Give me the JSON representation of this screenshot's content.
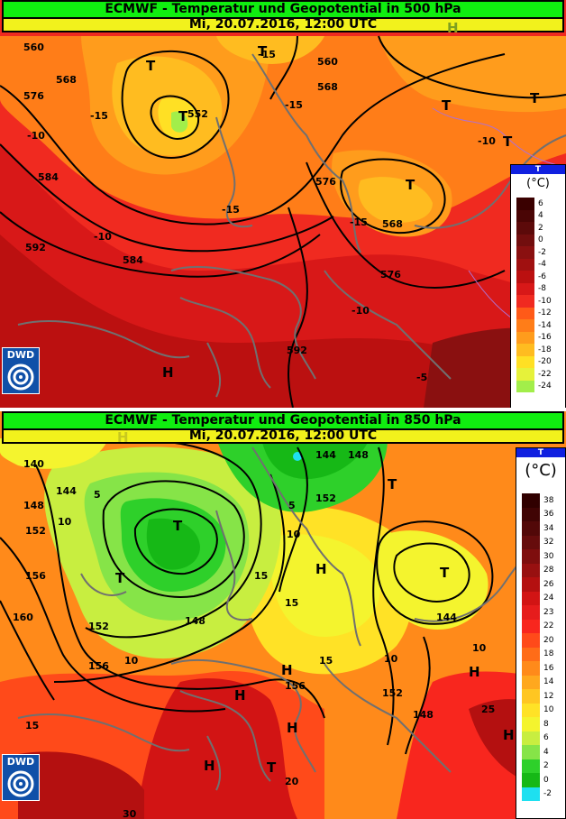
{
  "top": {
    "title": "ECMWF - Temperatur und Geopotential in 500 hPa",
    "datetime": "Mi, 20.07.2016, 12:00 UTC",
    "legend": {
      "header": "T",
      "unit": "(°C)",
      "levels": [
        {
          "label": "6",
          "color": "#3a0000"
        },
        {
          "label": "4",
          "color": "#4a0505"
        },
        {
          "label": "2",
          "color": "#5c0a0a"
        },
        {
          "label": "0",
          "color": "#720e0e"
        },
        {
          "label": "-2",
          "color": "#8a1010"
        },
        {
          "label": "-4",
          "color": "#a01010"
        },
        {
          "label": "-6",
          "color": "#bb1010"
        },
        {
          "label": "-8",
          "color": "#d81818"
        },
        {
          "label": "-10",
          "color": "#f02a20"
        },
        {
          "label": "-12",
          "color": "#ff5a18"
        },
        {
          "label": "-14",
          "color": "#ff7d18"
        },
        {
          "label": "-16",
          "color": "#ff9c1c"
        },
        {
          "label": "-18",
          "color": "#ffbc20"
        },
        {
          "label": "-20",
          "color": "#ffe024"
        },
        {
          "label": "-22",
          "color": "#e6f23a"
        },
        {
          "label": "-24",
          "color": "#a2ee4a"
        }
      ]
    },
    "contour_labels": [
      "560",
      "568",
      "576",
      "584",
      "592",
      "552",
      "560",
      "568",
      "576",
      "584",
      "568",
      "576",
      "592"
    ],
    "temp_labels": [
      "-15",
      "-15",
      "-10",
      "-10",
      "-15",
      "-15",
      "-10",
      "-10",
      "-5",
      "-15"
    ],
    "systems": [
      "T",
      "T",
      "T",
      "T",
      "T",
      "T",
      "T",
      "H",
      "H"
    ],
    "logo": "DWD"
  },
  "bottom": {
    "title": "ECMWF - Temperatur und Geopotential in 850 hPa",
    "datetime": "Mi, 20.07.2016, 12:00 UTC",
    "legend": {
      "header": "T",
      "unit": "(°C)",
      "levels": [
        {
          "label": "38",
          "color": "#300000"
        },
        {
          "label": "36",
          "color": "#400404"
        },
        {
          "label": "34",
          "color": "#520808"
        },
        {
          "label": "32",
          "color": "#660c0c"
        },
        {
          "label": "30",
          "color": "#7e0e0e"
        },
        {
          "label": "28",
          "color": "#981010"
        },
        {
          "label": "26",
          "color": "#b41010"
        },
        {
          "label": "24",
          "color": "#d21414"
        },
        {
          "label": "23",
          "color": "#e61c1c"
        },
        {
          "label": "22",
          "color": "#f8261e"
        },
        {
          "label": "20",
          "color": "#ff4a1a"
        },
        {
          "label": "18",
          "color": "#ff6c18"
        },
        {
          "label": "16",
          "color": "#ff8a1a"
        },
        {
          "label": "14",
          "color": "#ffa81e"
        },
        {
          "label": "12",
          "color": "#ffc622"
        },
        {
          "label": "10",
          "color": "#ffe226"
        },
        {
          "label": "8",
          "color": "#f4f42e"
        },
        {
          "label": "6",
          "color": "#c8ee40"
        },
        {
          "label": "4",
          "color": "#86e448"
        },
        {
          "label": "2",
          "color": "#2ed02a"
        },
        {
          "label": "0",
          "color": "#16b816"
        },
        {
          "label": "-2",
          "color": "#1ee0f0"
        }
      ]
    },
    "contour_labels": [
      "140",
      "144",
      "148",
      "152",
      "156",
      "160",
      "152",
      "156",
      "148",
      "144",
      "148",
      "152",
      "144",
      "148",
      "152",
      "156"
    ],
    "temp_labels": [
      "5",
      "10",
      "10",
      "10",
      "15",
      "15",
      "15",
      "10",
      "5",
      "10",
      "15",
      "20",
      "25",
      "30"
    ],
    "systems": [
      "T",
      "T",
      "T",
      "T",
      "H",
      "H",
      "H",
      "H",
      "H",
      "H",
      "H",
      "T",
      "H"
    ],
    "logo": "DWD"
  }
}
